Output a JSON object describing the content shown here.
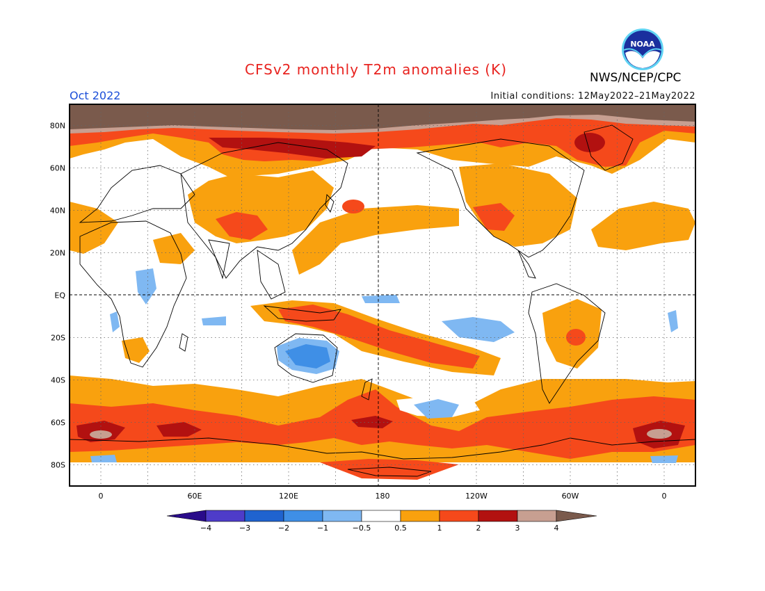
{
  "header": {
    "title": "CFSv2 monthly T2m anomalies (K)",
    "month": "Oct 2022",
    "init": "Initial conditions: 12May2022–21May2022",
    "agency": "NWS/NCEP/CPC",
    "logo_text": "NOAA"
  },
  "map": {
    "lat_labels": [
      "80N",
      "60N",
      "40N",
      "20N",
      "EQ",
      "20S",
      "40S",
      "60S",
      "80S"
    ],
    "lon_labels": [
      "0",
      "60E",
      "120E",
      "180",
      "120W",
      "60W",
      "0"
    ],
    "lat_values": [
      80,
      60,
      40,
      20,
      0,
      -20,
      -40,
      -60,
      -80
    ],
    "lon_values": [
      0,
      60,
      120,
      180,
      240,
      300,
      360
    ]
  },
  "colorbar": {
    "labels": [
      "−4",
      "−3",
      "−2",
      "−1",
      "−0.5",
      "0.5",
      "1",
      "2",
      "3",
      "4"
    ],
    "colors": [
      "#2a0c8a",
      "#4e3cc9",
      "#1f63cf",
      "#3f8fe6",
      "#7fb8f2",
      "#ffffff",
      "#f9a10e",
      "#f5491b",
      "#b21110",
      "#c79f91",
      "#7a5a4c"
    ]
  },
  "colors": {
    "orange": "#f9a10e",
    "red": "#f5491b",
    "darkred": "#b21110",
    "tan": "#c79f91",
    "brown": "#7a5a4c",
    "lightblue": "#7fb8f2",
    "blue": "#3f8fe6"
  }
}
